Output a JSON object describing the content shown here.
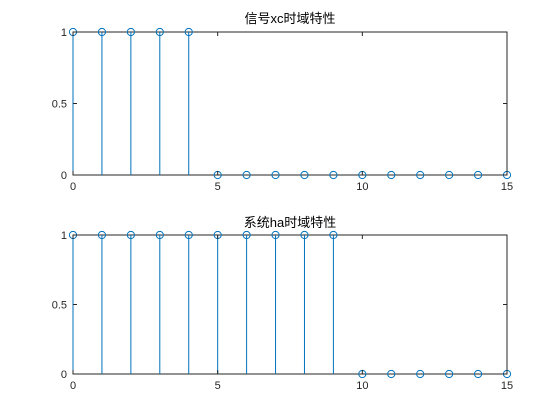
{
  "figure": {
    "background": "#ffffff",
    "axes_color": "#262626",
    "stem_color": "#0072bd"
  },
  "chart_data": [
    {
      "type": "stem",
      "title": "信号xc时域特性",
      "xlabel": "",
      "ylabel": "",
      "xlim": [
        0,
        15
      ],
      "ylim": [
        0,
        1
      ],
      "xticks": [
        0,
        5,
        10,
        15
      ],
      "yticks": [
        0,
        0.5,
        1
      ],
      "xtick_labels": [
        "0",
        "5",
        "10",
        "15"
      ],
      "ytick_labels": [
        "0",
        "0.5",
        "1"
      ],
      "marker": "circle-open",
      "grid": false,
      "x": [
        0,
        1,
        2,
        3,
        4,
        5,
        6,
        7,
        8,
        9,
        10,
        11,
        12,
        13,
        14,
        15
      ],
      "values": [
        1,
        1,
        1,
        1,
        1,
        0,
        0,
        0,
        0,
        0,
        0,
        0,
        0,
        0,
        0,
        0
      ]
    },
    {
      "type": "stem",
      "title": "系统ha时域特性",
      "xlabel": "",
      "ylabel": "",
      "xlim": [
        0,
        15
      ],
      "ylim": [
        0,
        1
      ],
      "xticks": [
        0,
        5,
        10,
        15
      ],
      "yticks": [
        0,
        0.5,
        1
      ],
      "xtick_labels": [
        "0",
        "5",
        "10",
        "15"
      ],
      "ytick_labels": [
        "0",
        "0.5",
        "1"
      ],
      "marker": "circle-open",
      "grid": false,
      "x": [
        0,
        1,
        2,
        3,
        4,
        5,
        6,
        7,
        8,
        9,
        10,
        11,
        12,
        13,
        14,
        15
      ],
      "values": [
        1,
        1,
        1,
        1,
        1,
        1,
        1,
        1,
        1,
        1,
        0,
        0,
        0,
        0,
        0,
        0
      ]
    }
  ]
}
